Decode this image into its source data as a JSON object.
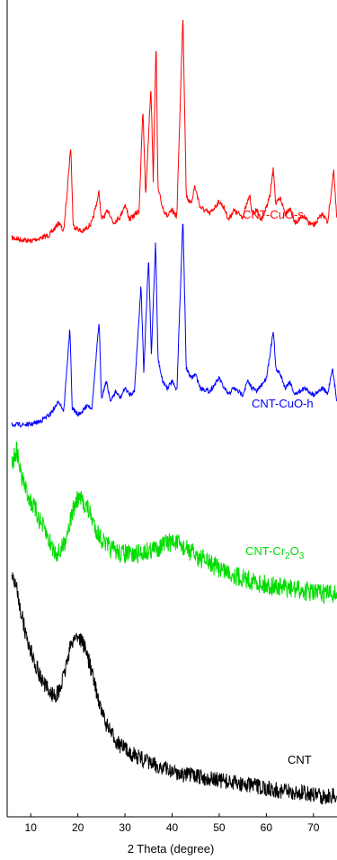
{
  "chart_data": {
    "type": "line",
    "title": "",
    "xlabel": "2 Theta (degree)",
    "ylabel": "",
    "xlim": [
      5,
      75
    ],
    "x_ticks": [
      "10",
      "20",
      "30",
      "40",
      "50",
      "60",
      "70"
    ],
    "grid": false,
    "legend": "labels beside each trace",
    "series": [
      {
        "name": "CNT-CuO-s",
        "color": "#ff0000",
        "points": [
          [
            6,
            0.02
          ],
          [
            10,
            0.0
          ],
          [
            14,
            0.04
          ],
          [
            16,
            0.12
          ],
          [
            17,
            0.06
          ],
          [
            18.5,
            0.62
          ],
          [
            19,
            0.1
          ],
          [
            21,
            0.06
          ],
          [
            23,
            0.12
          ],
          [
            24.5,
            0.32
          ],
          [
            25,
            0.14
          ],
          [
            26.5,
            0.2
          ],
          [
            27.5,
            0.12
          ],
          [
            29,
            0.16
          ],
          [
            30,
            0.24
          ],
          [
            31,
            0.14
          ],
          [
            33,
            0.2
          ],
          [
            33.8,
            0.86
          ],
          [
            34.4,
            0.3
          ],
          [
            35.5,
            1.02
          ],
          [
            36,
            0.4
          ],
          [
            36.6,
            1.32
          ],
          [
            37,
            0.34
          ],
          [
            38,
            0.22
          ],
          [
            39,
            0.16
          ],
          [
            40,
            0.2
          ],
          [
            41,
            0.16
          ],
          [
            42.3,
            1.48
          ],
          [
            43,
            0.3
          ],
          [
            44,
            0.24
          ],
          [
            44.8,
            0.36
          ],
          [
            46,
            0.22
          ],
          [
            48,
            0.18
          ],
          [
            50,
            0.26
          ],
          [
            51,
            0.22
          ],
          [
            52,
            0.14
          ],
          [
            53,
            0.2
          ],
          [
            54,
            0.18
          ],
          [
            55,
            0.16
          ],
          [
            56.5,
            0.3
          ],
          [
            57,
            0.18
          ],
          [
            58,
            0.2
          ],
          [
            59,
            0.14
          ],
          [
            60,
            0.22
          ],
          [
            60.8,
            0.3
          ],
          [
            61.5,
            0.48
          ],
          [
            62,
            0.24
          ],
          [
            63,
            0.28
          ],
          [
            64,
            0.18
          ],
          [
            65,
            0.22
          ],
          [
            66,
            0.12
          ],
          [
            67,
            0.14
          ],
          [
            68,
            0.16
          ],
          [
            69,
            0.12
          ],
          [
            70,
            0.1
          ],
          [
            71,
            0.14
          ],
          [
            72,
            0.18
          ],
          [
            73,
            0.12
          ],
          [
            74.3,
            0.46
          ],
          [
            75,
            0.12
          ]
        ]
      },
      {
        "name": "CNT-CuO-h",
        "color": "#0000ff",
        "points": [
          [
            6,
            0.0
          ],
          [
            10,
            0.0
          ],
          [
            12,
            0.02
          ],
          [
            14,
            0.06
          ],
          [
            15,
            0.1
          ],
          [
            16,
            0.14
          ],
          [
            17,
            0.08
          ],
          [
            18.3,
            0.58
          ],
          [
            18.8,
            0.1
          ],
          [
            20,
            0.06
          ],
          [
            21,
            0.08
          ],
          [
            22,
            0.12
          ],
          [
            23,
            0.1
          ],
          [
            24.5,
            0.62
          ],
          [
            25,
            0.16
          ],
          [
            26,
            0.26
          ],
          [
            27,
            0.14
          ],
          [
            28,
            0.2
          ],
          [
            29,
            0.16
          ],
          [
            30,
            0.22
          ],
          [
            31,
            0.18
          ],
          [
            32,
            0.2
          ],
          [
            33.4,
            0.84
          ],
          [
            34,
            0.32
          ],
          [
            35,
            1.0
          ],
          [
            35.6,
            0.42
          ],
          [
            36.5,
            1.1
          ],
          [
            37,
            0.4
          ],
          [
            38,
            0.26
          ],
          [
            39,
            0.22
          ],
          [
            40,
            0.26
          ],
          [
            41,
            0.2
          ],
          [
            42.3,
            1.24
          ],
          [
            43,
            0.34
          ],
          [
            44,
            0.28
          ],
          [
            45,
            0.3
          ],
          [
            46,
            0.22
          ],
          [
            48,
            0.2
          ],
          [
            50,
            0.28
          ],
          [
            51,
            0.22
          ],
          [
            52,
            0.18
          ],
          [
            53,
            0.22
          ],
          [
            54,
            0.2
          ],
          [
            55,
            0.18
          ],
          [
            56,
            0.26
          ],
          [
            57,
            0.22
          ],
          [
            58,
            0.2
          ],
          [
            59,
            0.24
          ],
          [
            60,
            0.28
          ],
          [
            61.5,
            0.56
          ],
          [
            62,
            0.34
          ],
          [
            63,
            0.3
          ],
          [
            64,
            0.22
          ],
          [
            65,
            0.26
          ],
          [
            66,
            0.18
          ],
          [
            67,
            0.2
          ],
          [
            68,
            0.22
          ],
          [
            69,
            0.2
          ],
          [
            70,
            0.18
          ],
          [
            71,
            0.2
          ],
          [
            72,
            0.22
          ],
          [
            73,
            0.18
          ],
          [
            74,
            0.34
          ],
          [
            75,
            0.14
          ]
        ]
      },
      {
        "name": "CNT-Cr2O3",
        "color": "#00dd00",
        "points": [
          [
            6,
            0.9
          ],
          [
            7,
            1.0
          ],
          [
            8,
            0.82
          ],
          [
            9,
            0.72
          ],
          [
            10,
            0.64
          ],
          [
            11,
            0.58
          ],
          [
            12,
            0.5
          ],
          [
            13,
            0.44
          ],
          [
            14,
            0.36
          ],
          [
            15,
            0.3
          ],
          [
            16,
            0.28
          ],
          [
            17,
            0.34
          ],
          [
            18,
            0.46
          ],
          [
            19,
            0.58
          ],
          [
            20,
            0.66
          ],
          [
            21,
            0.64
          ],
          [
            22,
            0.6
          ],
          [
            23,
            0.52
          ],
          [
            24,
            0.44
          ],
          [
            25,
            0.38
          ],
          [
            26,
            0.34
          ],
          [
            27,
            0.31
          ],
          [
            28,
            0.3
          ],
          [
            29,
            0.28
          ],
          [
            30,
            0.28
          ],
          [
            31,
            0.27
          ],
          [
            32,
            0.27
          ],
          [
            33,
            0.28
          ],
          [
            34,
            0.29
          ],
          [
            35,
            0.3
          ],
          [
            36,
            0.31
          ],
          [
            37,
            0.32
          ],
          [
            38,
            0.34
          ],
          [
            39,
            0.35
          ],
          [
            40,
            0.36
          ],
          [
            41,
            0.35
          ],
          [
            42,
            0.33
          ],
          [
            43,
            0.31
          ],
          [
            44,
            0.29
          ],
          [
            45,
            0.27
          ],
          [
            46,
            0.25
          ],
          [
            47,
            0.23
          ],
          [
            48,
            0.21
          ],
          [
            50,
            0.18
          ],
          [
            52,
            0.15
          ],
          [
            54,
            0.12
          ],
          [
            56,
            0.1
          ],
          [
            58,
            0.08
          ],
          [
            60,
            0.06
          ],
          [
            62,
            0.05
          ],
          [
            64,
            0.04
          ],
          [
            66,
            0.03
          ],
          [
            68,
            0.02
          ],
          [
            70,
            0.01
          ],
          [
            72,
            0.0
          ],
          [
            74,
            0.0
          ],
          [
            75,
            0.0
          ]
        ]
      },
      {
        "name": "CNT",
        "color": "#000000",
        "points": [
          [
            6,
            1.4
          ],
          [
            7,
            1.32
          ],
          [
            8,
            1.16
          ],
          [
            9,
            1.02
          ],
          [
            10,
            0.92
          ],
          [
            11,
            0.84
          ],
          [
            12,
            0.76
          ],
          [
            13,
            0.7
          ],
          [
            14,
            0.66
          ],
          [
            15,
            0.64
          ],
          [
            16,
            0.66
          ],
          [
            17,
            0.76
          ],
          [
            18,
            0.9
          ],
          [
            19,
            1.0
          ],
          [
            20,
            1.02
          ],
          [
            21,
            0.98
          ],
          [
            22,
            0.9
          ],
          [
            23,
            0.78
          ],
          [
            24,
            0.66
          ],
          [
            25,
            0.54
          ],
          [
            26,
            0.46
          ],
          [
            27,
            0.4
          ],
          [
            28,
            0.36
          ],
          [
            29,
            0.32
          ],
          [
            30,
            0.3
          ],
          [
            31,
            0.28
          ],
          [
            32,
            0.26
          ],
          [
            34,
            0.23
          ],
          [
            36,
            0.2
          ],
          [
            38,
            0.18
          ],
          [
            40,
            0.16
          ],
          [
            42,
            0.14
          ],
          [
            44,
            0.13
          ],
          [
            46,
            0.12
          ],
          [
            48,
            0.11
          ],
          [
            50,
            0.1
          ],
          [
            52,
            0.09
          ],
          [
            54,
            0.08
          ],
          [
            56,
            0.07
          ],
          [
            58,
            0.06
          ],
          [
            60,
            0.05
          ],
          [
            62,
            0.04
          ],
          [
            64,
            0.03
          ],
          [
            66,
            0.02
          ],
          [
            68,
            0.02
          ],
          [
            70,
            0.01
          ],
          [
            72,
            0.0
          ],
          [
            75,
            0.0
          ]
        ]
      }
    ]
  },
  "labels": {
    "cnt_cuo_s": "CNT-CuO-s",
    "cnt_cuo_h": "CNT-CuO-h",
    "cnt_cr2o3_prefix": "CNT-Cr",
    "cnt_cr2o3_sub1": "2",
    "cnt_cr2o3_mid": "O",
    "cnt_cr2o3_sub2": "3",
    "cnt": "CNT"
  }
}
